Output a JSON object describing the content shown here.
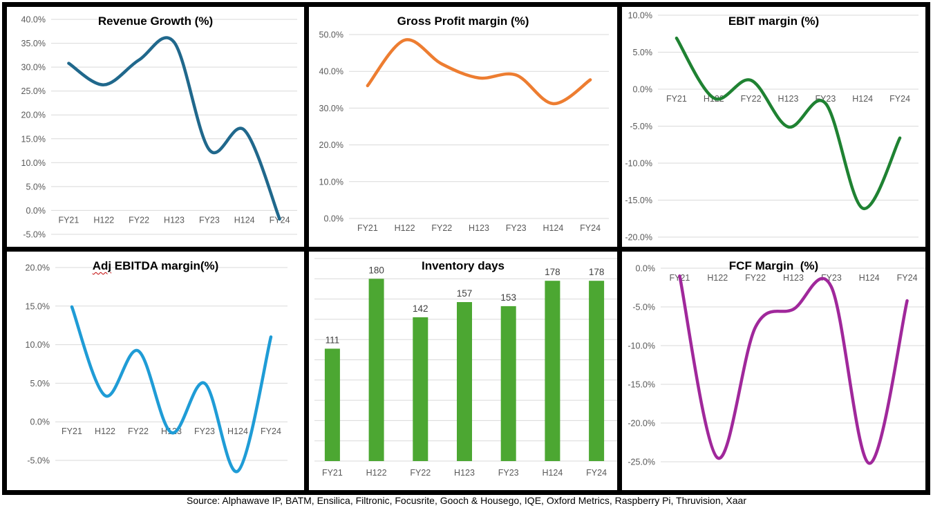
{
  "page": {
    "source_line": "Source: Alphawave IP, BATM, Ensilica, Filtronic, Focusrite, Gooch & Housego, IQE, Oxford Metrics, Raspberry Pi, Thruvision, Xaar"
  },
  "chart_data": [
    {
      "id": "revenue-growth",
      "type": "line",
      "title": "Revenue Growth (%)",
      "color": "#20688C",
      "categories": [
        "FY21",
        "H122",
        "FY22",
        "H123",
        "FY23",
        "H124",
        "FY24"
      ],
      "values": [
        30.8,
        26.3,
        31.5,
        35.2,
        12.7,
        16.8,
        -1.8
      ],
      "y_ticks": [
        40,
        35,
        30,
        25,
        20,
        15,
        10,
        5,
        0,
        -5
      ],
      "ylim": [
        -5,
        40
      ],
      "y_tick_format": "percent1",
      "x_labels_at": "zero",
      "grid": true,
      "legend": "none"
    },
    {
      "id": "gross-profit-margin",
      "type": "line",
      "title": "Gross Profit margin (%)",
      "color": "#ED7D31",
      "categories": [
        "FY21",
        "H122",
        "FY22",
        "H123",
        "FY23",
        "H124",
        "FY24"
      ],
      "values": [
        36.1,
        48.5,
        42.0,
        38.2,
        39.0,
        31.2,
        37.7
      ],
      "y_ticks": [
        50,
        40,
        30,
        20,
        10,
        0
      ],
      "ylim": [
        0,
        50
      ],
      "y_tick_format": "percent1",
      "x_labels_at": "zero",
      "grid": true,
      "legend": "none"
    },
    {
      "id": "ebit-margin",
      "type": "line",
      "title": "EBIT margin (%)",
      "color": "#1F8232",
      "categories": [
        "FY21",
        "H122",
        "FY22",
        "H123",
        "FY23",
        "H124",
        "FY24"
      ],
      "values": [
        6.9,
        -1.2,
        1.2,
        -5.1,
        -1.9,
        -16.1,
        -6.6
      ],
      "y_ticks": [
        10,
        5,
        0,
        -5,
        -10,
        -15,
        -20
      ],
      "ylim": [
        -20,
        10
      ],
      "y_tick_format": "percent1",
      "x_labels_at": "zero",
      "grid": true,
      "legend": "none"
    },
    {
      "id": "adj-ebitda-margin",
      "type": "line",
      "title": "Adj EBITDA margin(%)",
      "squiggle_word": "Adj",
      "color": "#1F9CD6",
      "categories": [
        "FY21",
        "H122",
        "FY22",
        "H123",
        "FY23",
        "H124",
        "FY24"
      ],
      "values": [
        14.9,
        3.4,
        9.2,
        -1.4,
        5.0,
        -6.4,
        11.0
      ],
      "y_ticks": [
        20,
        15,
        10,
        5,
        0,
        -5
      ],
      "ylim": [
        -5,
        20
      ],
      "y_tick_format": "percent1",
      "x_labels_at": "zero",
      "grid": true,
      "legend": "none"
    },
    {
      "id": "inventory-days",
      "type": "bar",
      "title": "Inventory days",
      "color": "#4CA732",
      "categories": [
        "FY21",
        "H122",
        "FY22",
        "H123",
        "FY23",
        "H124",
        "FY24"
      ],
      "values": [
        111,
        180,
        142,
        157,
        153,
        178,
        178
      ],
      "data_labels": true,
      "grid_values": [
        200,
        180,
        160,
        140,
        120,
        100,
        80,
        60,
        40,
        20,
        0
      ],
      "show_y_labels": false,
      "ylim": [
        0,
        200
      ],
      "x_labels_at": "bottom",
      "grid": true,
      "legend": "none"
    },
    {
      "id": "fcf-margin",
      "type": "line",
      "title": "FCF Margin  (%)",
      "color": "#A0289B",
      "categories": [
        "FY21",
        "H122",
        "FY22",
        "H123",
        "FY23",
        "H124",
        "FY24"
      ],
      "values": [
        -1.0,
        -24.5,
        -7.6,
        -5.3,
        -2.4,
        -25.2,
        -4.2
      ],
      "y_ticks": [
        0,
        -5,
        -10,
        -15,
        -20,
        -25
      ],
      "ylim": [
        -25,
        0
      ],
      "y_tick_format": "percent1",
      "x_labels_at": "zero",
      "grid": true,
      "legend": "none"
    }
  ]
}
